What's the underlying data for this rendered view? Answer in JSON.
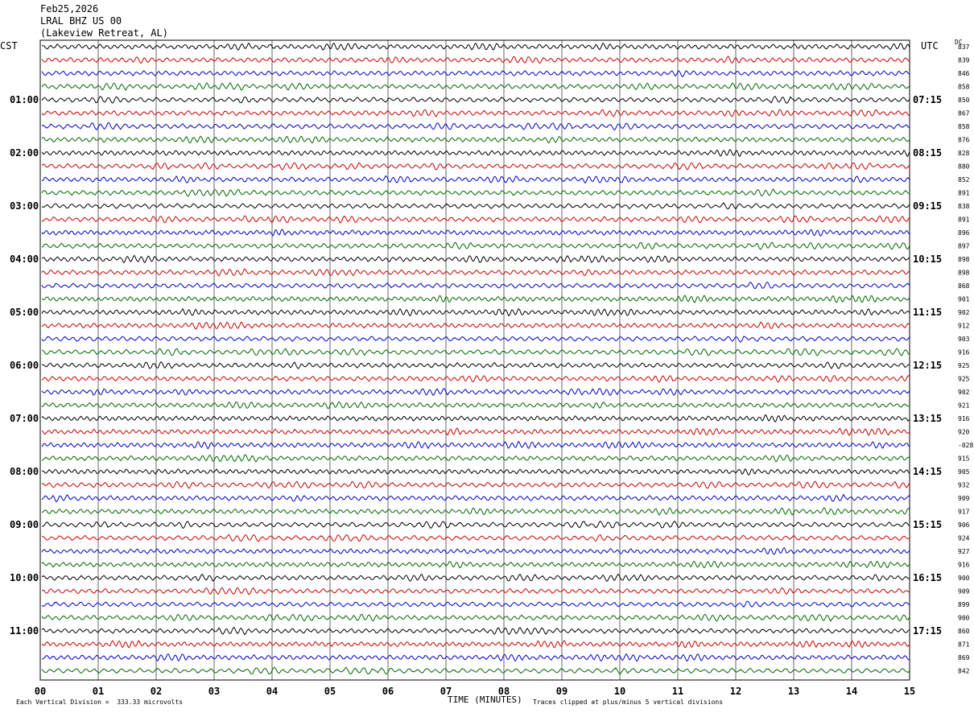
{
  "header": {
    "date": "Feb25,2026",
    "station": "LRAL BHZ US 00",
    "location": "(Lakeview Retreat, AL)"
  },
  "left_tz": "CST",
  "right_tz": "UTC",
  "dc_label": "DC",
  "footer": {
    "scale": "Each Vertical Division =  333.33 microvolts",
    "clip": "Traces clipped at plus/minus 5 vertical divisions"
  },
  "chart_data": {
    "type": "line",
    "title": "",
    "xlabel": "TIME (MINUTES)",
    "xlim": [
      0,
      15
    ],
    "x_ticks": [
      "00",
      "01",
      "02",
      "03",
      "04",
      "05",
      "06",
      "07",
      "08",
      "09",
      "10",
      "11",
      "12",
      "13",
      "14",
      "15"
    ],
    "grid": "vertical lines at each minute",
    "trace_colors": [
      "#000000",
      "#cc0000",
      "#0000cc",
      "#006600"
    ],
    "rows_per_hour": 4,
    "minutes_per_row": 15,
    "left_hour_labels": [
      "01:00",
      "02:00",
      "03:00",
      "04:00",
      "05:00",
      "06:00",
      "07:00",
      "08:00",
      "09:00",
      "10:00",
      "11:00"
    ],
    "right_hour_labels": [
      "07:15",
      "08:15",
      "09:15",
      "10:15",
      "11:15",
      "12:15",
      "13:15",
      "14:15",
      "15:15",
      "16:15",
      "17:15"
    ],
    "dc_offsets": [
      "837",
      "839",
      "846",
      "858",
      "850",
      "867",
      "858",
      "876",
      "828",
      "880",
      "852",
      "891",
      "838",
      "891",
      "896",
      "897",
      "898",
      "898",
      "868",
      "901",
      "902",
      "912",
      "903",
      "916",
      "925",
      "925",
      "902",
      "921",
      "916",
      "920",
      "-028",
      "915",
      "905",
      "932",
      "909",
      "917",
      "906",
      "924",
      "927",
      "916",
      "900",
      "909",
      "899",
      "900",
      "860",
      "871",
      "869",
      "842"
    ]
  }
}
